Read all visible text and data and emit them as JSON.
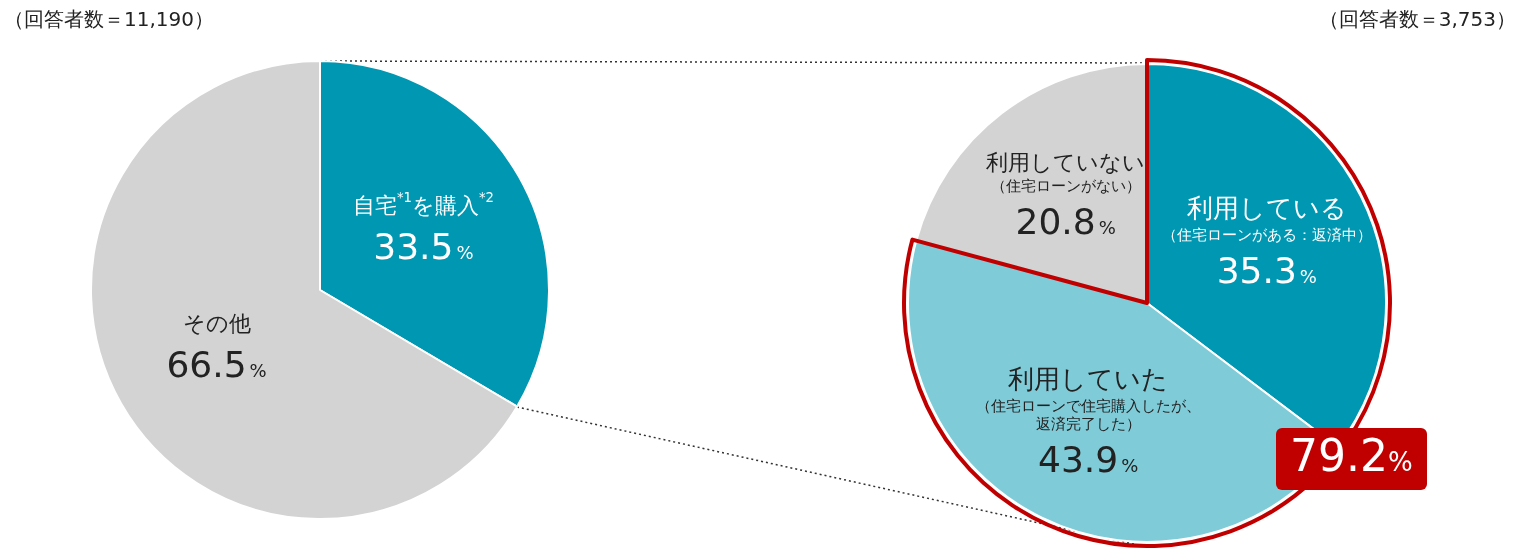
{
  "chart_data": [
    {
      "type": "pie",
      "categories": [
        "自宅$^{*1}$を購入$^{*2}$",
        "その他"
      ],
      "values": [
        33.5,
        66.5
      ],
      "colors": [
        "#0097b2",
        "#d3d3d3"
      ],
      "value_labels": [
        "33.5%",
        "66.5%"
      ],
      "annotations": [
        "（回答者数＝11,190）"
      ]
    },
    {
      "type": "pie",
      "categories": [
        "利用している（住宅ローンがある：返済中）",
        "利用していた（住宅ローンで住宅購入したが、返済完了した）",
        "利用していない（住宅ローンがない）"
      ],
      "values": [
        35.3,
        43.9,
        20.8
      ],
      "colors": [
        "#0097b2",
        "#7fcbd8",
        "#d3d3d3"
      ],
      "value_labels": [
        "35.3%",
        "43.9%",
        "20.8%"
      ],
      "annotations": [
        "（回答者数＝3,753）",
        "79.2%"
      ]
    }
  ]
}
